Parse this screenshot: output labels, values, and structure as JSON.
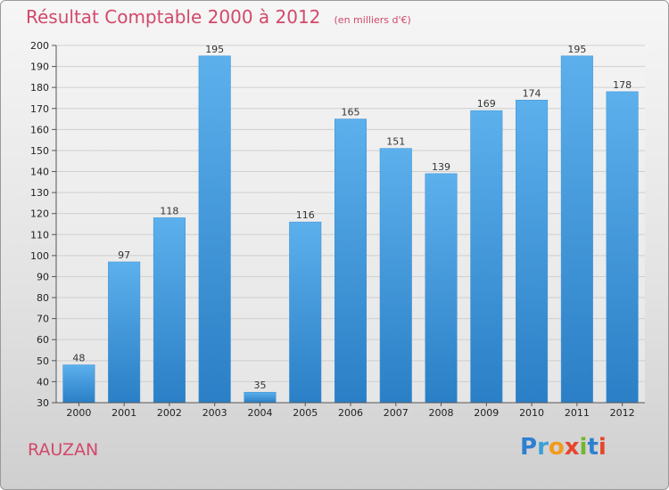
{
  "title": "Résultat Comptable 2000 à 2012",
  "unit_note": "(en milliers d'€)",
  "location": "RAUZAN",
  "logo": {
    "letters": [
      "P",
      "r",
      "o",
      "x",
      "i",
      "t",
      "i"
    ],
    "colors": [
      "#2e7fd0",
      "#3aa0d8",
      "#f39a1c",
      "#e8452c",
      "#72b62c",
      "#2e7fd0",
      "#e8452c"
    ]
  },
  "chart_data": {
    "type": "bar",
    "categories": [
      "2000",
      "2001",
      "2002",
      "2003",
      "2004",
      "2005",
      "2006",
      "2007",
      "2008",
      "2009",
      "2010",
      "2011",
      "2012"
    ],
    "values": [
      48,
      97,
      118,
      195,
      35,
      116,
      165,
      151,
      139,
      169,
      174,
      195,
      178
    ],
    "ylim": [
      30,
      200
    ],
    "yticks": [
      30,
      40,
      50,
      60,
      70,
      80,
      90,
      100,
      110,
      120,
      130,
      140,
      150,
      160,
      170,
      180,
      190,
      200
    ],
    "grid": true,
    "bar_color": "#4aa0e0"
  }
}
